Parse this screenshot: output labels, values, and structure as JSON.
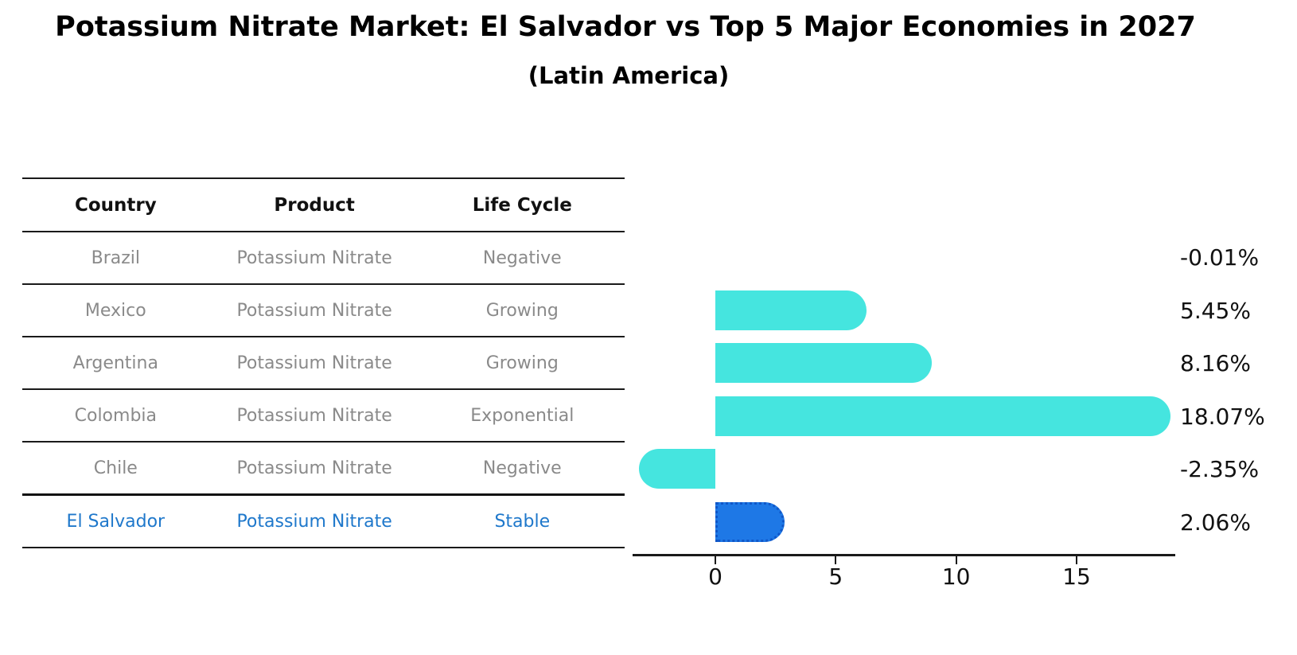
{
  "title": "Potassium Nitrate Market: El Salvador vs Top 5 Major Economies in 2027",
  "subtitle": "(Latin America)",
  "table": {
    "columns": [
      "Country",
      "Product",
      "Life Cycle"
    ],
    "rows": [
      {
        "country": "Brazil",
        "product": "Potassium Nitrate",
        "life_cycle": "Negative",
        "highlighted": false
      },
      {
        "country": "Mexico",
        "product": "Potassium Nitrate",
        "life_cycle": "Growing",
        "highlighted": false
      },
      {
        "country": "Argentina",
        "product": "Potassium Nitrate",
        "life_cycle": "Growing",
        "highlighted": false
      },
      {
        "country": "Colombia",
        "product": "Potassium Nitrate",
        "life_cycle": "Exponential",
        "highlighted": false
      },
      {
        "country": "Chile",
        "product": "Potassium Nitrate",
        "life_cycle": "Negative",
        "highlighted": false
      },
      {
        "country": "El Salvador",
        "product": "Potassium Nitrate",
        "life_cycle": "Stable",
        "highlighted": true
      }
    ]
  },
  "chart_data": {
    "type": "bar",
    "orientation": "horizontal",
    "categories": [
      "Brazil",
      "Mexico",
      "Argentina",
      "Colombia",
      "Chile",
      "El Salvador"
    ],
    "values": [
      -0.01,
      5.45,
      8.16,
      18.07,
      -2.35,
      2.06
    ],
    "value_labels": [
      "-0.01%",
      "5.45%",
      "8.16%",
      "18.07%",
      "-2.35%",
      "2.06%"
    ],
    "title": "Potassium Nitrate Market: El Salvador vs Top 5 Major Economies in 2027",
    "subtitle": "(Latin America)",
    "xlabel": "",
    "ylabel": "",
    "xticks": [
      0,
      5,
      10,
      15
    ],
    "xlim": [
      -3.4,
      19.1
    ],
    "grid": false,
    "legend": false,
    "highlight_category": "El Salvador",
    "bar_color_default": "#45e5df",
    "bar_color_highlight": "#1e78e6",
    "highlight_border_color": "#1057c8",
    "highlight_border_style": "dotted"
  },
  "colors": {
    "background": "#ffffff",
    "row_text": "#8a8a8a",
    "header_text": "#111111",
    "highlight_text": "#1f78cb",
    "line": "#1a1a1a",
    "value_label": "#111111"
  }
}
